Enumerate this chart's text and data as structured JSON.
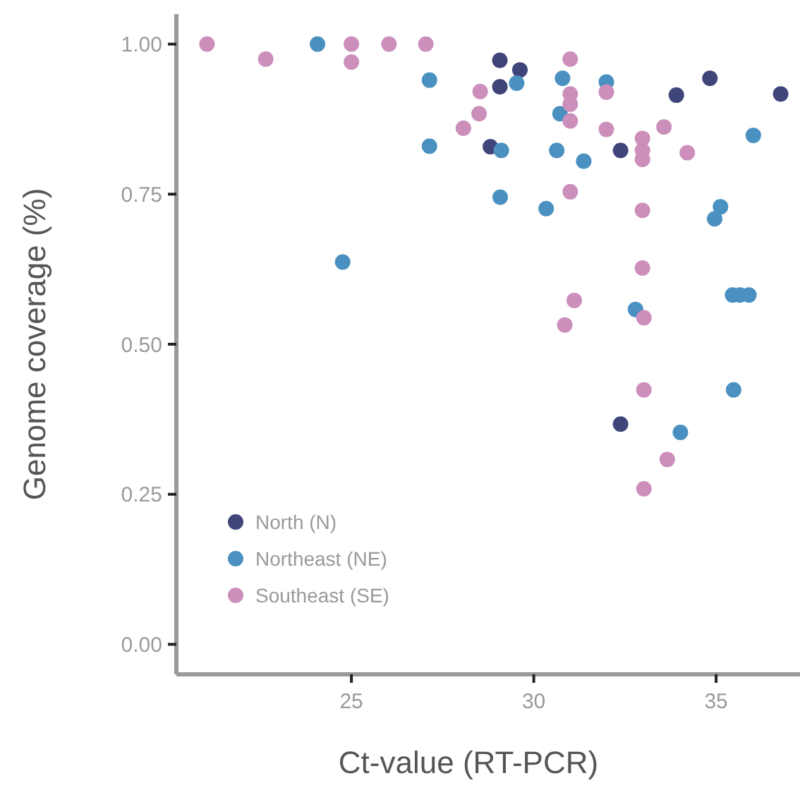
{
  "chart_data": {
    "type": "scatter",
    "xlabel": "Ct-value (RT-PCR)",
    "ylabel": "Genome coverage (%)",
    "xlim": [
      20.2,
      37.3
    ],
    "xticks": [
      25,
      30,
      35
    ],
    "ylim": [
      -0.05,
      1.05
    ],
    "yticks": [
      {
        "value": 0,
        "label": "0.00"
      },
      {
        "value": 0.25,
        "label": "0.25"
      },
      {
        "value": 0.5,
        "label": "0.50"
      },
      {
        "value": 0.75,
        "label": "0.75"
      },
      {
        "value": 1,
        "label": "1.00"
      }
    ],
    "grid": false,
    "legend": "bottom left",
    "marker": "circle",
    "series": [
      {
        "name": "North (N)",
        "color": "#3f4479",
        "x": [
          29.07,
          29.62,
          29.07,
          33.91,
          34.83,
          36.77,
          32.38,
          28.81,
          32.38
        ],
        "values": [
          0.973,
          0.957,
          0.929,
          0.915,
          0.943,
          0.917,
          0.823,
          0.829,
          0.367
        ]
      },
      {
        "name": "Northeast (NE)",
        "color": "#4a90c0",
        "x": [
          24.07,
          27.14,
          27.14,
          24.76,
          29.53,
          30.79,
          30.72,
          31.99,
          29.11,
          30.63,
          31.37,
          36.02,
          29.08,
          30.34,
          35.12,
          34.96,
          35.45,
          35.65,
          35.9,
          32.79,
          35.48,
          34.02
        ],
        "values": [
          1.0,
          0.94,
          0.83,
          0.637,
          0.935,
          0.943,
          0.884,
          0.937,
          0.823,
          0.823,
          0.805,
          0.848,
          0.745,
          0.726,
          0.729,
          0.709,
          0.582,
          0.582,
          0.582,
          0.558,
          0.424,
          0.353
        ]
      },
      {
        "name": "Southeast (SE)",
        "color": "#cc8fbc",
        "x": [
          21.04,
          22.65,
          25.0,
          25.0,
          26.03,
          27.04,
          28.07,
          28.53,
          28.5,
          31.0,
          31.0,
          31.0,
          31.0,
          31.99,
          33.57,
          31.99,
          32.98,
          32.98,
          32.98,
          34.21,
          31.0,
          32.98,
          32.98,
          31.11,
          30.85,
          33.02,
          33.02,
          33.66,
          33.02
        ],
        "values": [
          1.0,
          0.975,
          1.0,
          0.97,
          1.0,
          1.0,
          0.86,
          0.921,
          0.884,
          0.975,
          0.917,
          0.9,
          0.872,
          0.92,
          0.862,
          0.858,
          0.843,
          0.823,
          0.808,
          0.819,
          0.754,
          0.723,
          0.627,
          0.573,
          0.532,
          0.544,
          0.424,
          0.308,
          0.259
        ]
      }
    ]
  }
}
